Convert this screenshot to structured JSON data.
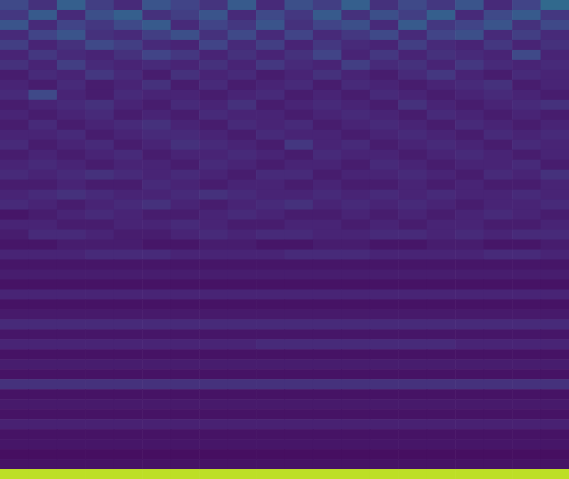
{
  "chart_data": {
    "type": "heatmap",
    "tick_labels": false,
    "zlim": [
      0,
      100
    ],
    "cells": [
      [
        22,
        14,
        30,
        18,
        12,
        26,
        20,
        15,
        28,
        12,
        24,
        18,
        30,
        14,
        22,
        16,
        26,
        12,
        20,
        34
      ],
      [
        16,
        28,
        12,
        24,
        30,
        14,
        18,
        26,
        12,
        22,
        16,
        28,
        14,
        24,
        18,
        30,
        12,
        22,
        28,
        16
      ],
      [
        26,
        12,
        20,
        16,
        22,
        28,
        12,
        20,
        16,
        26,
        14,
        20,
        24,
        12,
        28,
        16,
        20,
        26,
        14,
        22
      ],
      [
        12,
        20,
        26,
        14,
        12,
        18,
        24,
        14,
        22,
        12,
        20,
        12,
        16,
        22,
        12,
        20,
        24,
        12,
        18,
        12
      ],
      [
        18,
        10,
        14,
        22,
        18,
        12,
        10,
        20,
        12,
        18,
        10,
        16,
        12,
        10,
        18,
        12,
        10,
        16,
        10,
        14
      ],
      [
        10,
        16,
        12,
        10,
        14,
        20,
        16,
        10,
        14,
        10,
        14,
        20,
        10,
        16,
        10,
        14,
        12,
        10,
        22,
        10
      ],
      [
        14,
        10,
        18,
        12,
        10,
        12,
        10,
        14,
        10,
        16,
        12,
        10,
        18,
        12,
        14,
        10,
        16,
        12,
        10,
        12
      ],
      [
        8,
        12,
        10,
        16,
        12,
        8,
        14,
        10,
        12,
        8,
        10,
        14,
        10,
        8,
        12,
        16,
        10,
        8,
        12,
        10
      ],
      [
        10,
        8,
        12,
        8,
        10,
        14,
        8,
        12,
        8,
        10,
        12,
        8,
        12,
        10,
        8,
        10,
        12,
        14,
        8,
        10
      ],
      [
        12,
        22,
        10,
        8,
        12,
        10,
        10,
        8,
        10,
        12,
        8,
        10,
        8,
        12,
        10,
        8,
        10,
        12,
        10,
        8
      ],
      [
        8,
        10,
        12,
        14,
        10,
        8,
        12,
        10,
        14,
        8,
        10,
        12,
        10,
        8,
        14,
        10,
        8,
        10,
        12,
        14
      ],
      [
        10,
        8,
        10,
        12,
        8,
        10,
        8,
        12,
        10,
        10,
        8,
        10,
        12,
        10,
        8,
        12,
        10,
        8,
        10,
        8
      ],
      [
        8,
        12,
        8,
        10,
        12,
        14,
        10,
        8,
        12,
        10,
        12,
        8,
        10,
        12,
        10,
        8,
        12,
        10,
        8,
        10
      ],
      [
        10,
        10,
        12,
        8,
        10,
        12,
        12,
        10,
        8,
        12,
        10,
        10,
        8,
        10,
        12,
        10,
        8,
        12,
        10,
        12
      ],
      [
        12,
        8,
        10,
        12,
        8,
        10,
        14,
        12,
        10,
        8,
        16,
        10,
        12,
        8,
        10,
        12,
        10,
        8,
        12,
        10
      ],
      [
        8,
        10,
        8,
        10,
        12,
        8,
        10,
        10,
        12,
        10,
        8,
        12,
        10,
        10,
        8,
        10,
        12,
        10,
        8,
        10
      ],
      [
        10,
        12,
        10,
        8,
        10,
        10,
        8,
        12,
        10,
        8,
        10,
        10,
        8,
        12,
        10,
        8,
        10,
        10,
        12,
        8
      ],
      [
        12,
        10,
        12,
        14,
        12,
        10,
        12,
        10,
        8,
        12,
        12,
        8,
        10,
        10,
        12,
        10,
        8,
        12,
        10,
        14
      ],
      [
        8,
        8,
        10,
        8,
        8,
        12,
        10,
        8,
        10,
        10,
        8,
        10,
        8,
        8,
        10,
        8,
        10,
        8,
        8,
        10
      ],
      [
        10,
        12,
        14,
        12,
        10,
        10,
        12,
        14,
        12,
        10,
        10,
        12,
        10,
        12,
        10,
        12,
        10,
        10,
        12,
        10
      ],
      [
        12,
        10,
        8,
        10,
        12,
        14,
        10,
        8,
        10,
        12,
        14,
        10,
        12,
        10,
        12,
        10,
        8,
        10,
        10,
        12
      ],
      [
        6,
        8,
        10,
        12,
        10,
        8,
        8,
        10,
        12,
        10,
        8,
        8,
        10,
        8,
        10,
        8,
        10,
        12,
        10,
        8
      ],
      [
        10,
        10,
        8,
        8,
        10,
        10,
        12,
        10,
        8,
        8,
        10,
        10,
        8,
        10,
        8,
        10,
        10,
        8,
        8,
        10
      ],
      [
        8,
        12,
        12,
        10,
        8,
        8,
        10,
        12,
        10,
        12,
        12,
        10,
        10,
        12,
        12,
        10,
        12,
        10,
        12,
        12
      ],
      [
        6,
        6,
        8,
        8,
        8,
        6,
        6,
        8,
        8,
        6,
        6,
        8,
        8,
        6,
        6,
        8,
        8,
        6,
        6,
        8
      ],
      [
        10,
        10,
        10,
        12,
        12,
        12,
        10,
        10,
        10,
        10,
        12,
        12,
        12,
        10,
        10,
        10,
        10,
        12,
        12,
        10
      ],
      [
        6,
        6,
        6,
        6,
        6,
        6,
        6,
        6,
        6,
        6,
        6,
        6,
        6,
        6,
        6,
        6,
        6,
        6,
        6,
        6
      ],
      [
        8,
        8,
        8,
        8,
        8,
        8,
        8,
        8,
        8,
        8,
        8,
        8,
        8,
        8,
        8,
        8,
        8,
        8,
        8,
        8
      ],
      [
        5,
        5,
        5,
        5,
        5,
        5,
        5,
        5,
        5,
        5,
        5,
        5,
        5,
        5,
        5,
        5,
        5,
        5,
        5,
        5
      ],
      [
        10,
        10,
        10,
        10,
        10,
        10,
        10,
        10,
        10,
        10,
        10,
        10,
        10,
        10,
        10,
        10,
        10,
        10,
        10,
        10
      ],
      [
        5,
        5,
        5,
        5,
        5,
        5,
        5,
        5,
        5,
        5,
        5,
        5,
        5,
        5,
        5,
        5,
        5,
        5,
        5,
        5
      ],
      [
        7,
        7,
        7,
        7,
        7,
        7,
        7,
        7,
        7,
        7,
        7,
        7,
        7,
        7,
        7,
        7,
        7,
        7,
        7,
        7
      ],
      [
        12,
        12,
        12,
        12,
        12,
        12,
        12,
        12,
        12,
        12,
        12,
        12,
        12,
        12,
        12,
        12,
        12,
        12,
        12,
        12
      ],
      [
        6,
        6,
        6,
        6,
        6,
        6,
        6,
        6,
        6,
        6,
        6,
        6,
        6,
        6,
        6,
        6,
        6,
        6,
        6,
        6
      ],
      [
        10,
        10,
        10,
        10,
        10,
        10,
        10,
        10,
        10,
        12,
        12,
        12,
        12,
        12,
        12,
        12,
        10,
        10,
        10,
        10
      ],
      [
        5,
        5,
        5,
        5,
        5,
        5,
        5,
        5,
        5,
        5,
        5,
        5,
        5,
        5,
        5,
        5,
        5,
        5,
        5,
        5
      ],
      [
        8,
        8,
        8,
        8,
        8,
        8,
        8,
        8,
        8,
        8,
        8,
        8,
        8,
        8,
        8,
        8,
        8,
        8,
        8,
        8
      ],
      [
        5,
        5,
        5,
        5,
        5,
        5,
        5,
        5,
        5,
        5,
        5,
        5,
        5,
        5,
        5,
        5,
        5,
        5,
        5,
        5
      ],
      [
        14,
        14,
        14,
        14,
        14,
        14,
        14,
        14,
        14,
        14,
        14,
        14,
        14,
        14,
        14,
        14,
        14,
        14,
        14,
        14
      ],
      [
        5,
        5,
        5,
        5,
        5,
        5,
        5,
        5,
        5,
        5,
        5,
        5,
        5,
        5,
        5,
        5,
        5,
        5,
        5,
        5
      ],
      [
        7,
        7,
        7,
        7,
        7,
        7,
        7,
        7,
        7,
        7,
        7,
        7,
        7,
        7,
        7,
        7,
        7,
        7,
        7,
        7
      ],
      [
        5,
        5,
        5,
        5,
        5,
        5,
        5,
        5,
        5,
        5,
        5,
        5,
        5,
        5,
        5,
        5,
        5,
        5,
        5,
        5
      ],
      [
        9,
        9,
        9,
        9,
        9,
        9,
        9,
        9,
        9,
        9,
        9,
        9,
        9,
        9,
        9,
        9,
        9,
        9,
        9,
        9
      ],
      [
        5,
        5,
        5,
        5,
        5,
        5,
        5,
        5,
        5,
        5,
        5,
        5,
        5,
        5,
        5,
        5,
        5,
        5,
        5,
        5
      ],
      [
        6,
        6,
        6,
        6,
        6,
        6,
        6,
        6,
        6,
        6,
        6,
        6,
        6,
        6,
        6,
        6,
        6,
        6,
        6,
        6
      ],
      [
        4,
        4,
        4,
        4,
        4,
        4,
        4,
        4,
        4,
        4,
        4,
        4,
        4,
        4,
        4,
        4,
        4,
        4,
        4,
        4
      ],
      [
        5,
        5,
        5,
        5,
        5,
        5,
        5,
        5,
        5,
        5,
        5,
        5,
        5,
        5,
        5,
        5,
        5,
        5,
        5,
        5
      ],
      [
        90,
        90,
        90,
        90,
        90,
        90,
        90,
        90,
        90,
        90,
        90,
        90,
        90,
        90,
        90,
        90,
        90,
        90,
        90,
        90
      ]
    ]
  }
}
